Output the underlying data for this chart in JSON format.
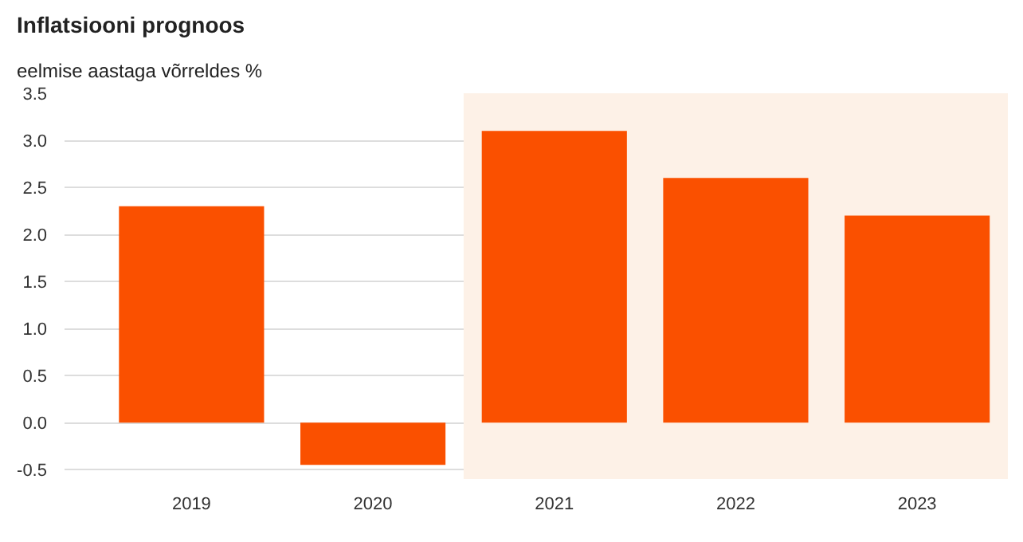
{
  "chart_data": {
    "type": "bar",
    "title": "Inflatsiooni prognoos",
    "subtitle": "eelmise aastaga võrreldes %",
    "categories": [
      "2019",
      "2020",
      "2021",
      "2022",
      "2023"
    ],
    "values": [
      2.3,
      -0.45,
      3.1,
      2.6,
      2.2
    ],
    "color": "#fa5000",
    "ylim": [
      -0.6,
      3.5
    ],
    "yticks": [
      -0.5,
      {
        "value": 0,
        "label": "0.0"
      },
      0.5,
      {
        "value": 1,
        "label": "1.0"
      },
      1.5,
      {
        "value": 2,
        "label": "2.0"
      },
      2.5,
      {
        "value": 3,
        "label": "3.0"
      },
      3.5
    ],
    "grid": "y",
    "bands": [
      {
        "axis": "x",
        "from": "2021",
        "to": "2023",
        "color": "#fdf1e7"
      }
    ]
  }
}
